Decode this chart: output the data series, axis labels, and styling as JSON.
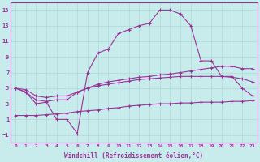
{
  "background_color": "#c8ecec",
  "grid_color": "#b0d8d8",
  "line_color": "#993399",
  "xlabel": "Windchill (Refroidissement éolien,°C)",
  "x_values": [
    0,
    1,
    2,
    3,
    4,
    5,
    6,
    7,
    8,
    9,
    10,
    11,
    12,
    13,
    14,
    15,
    16,
    17,
    18,
    19,
    20,
    21,
    22,
    23
  ],
  "line1": [
    5,
    4.5,
    3,
    3.2,
    1,
    1,
    -0.8,
    7,
    9.5,
    10,
    12,
    12.5,
    13,
    13.3,
    15,
    15,
    14.5,
    13,
    8.5,
    8.5,
    6.5,
    6.5,
    5,
    4
  ],
  "line2": [
    5,
    4.5,
    3.5,
    3.3,
    3.5,
    3.5,
    4.5,
    5.0,
    5.5,
    5.8,
    6.0,
    6.2,
    6.4,
    6.5,
    6.7,
    6.8,
    7.0,
    7.2,
    7.4,
    7.6,
    7.8,
    7.8,
    7.5,
    7.5
  ],
  "line3": [
    5,
    4.8,
    4.0,
    3.8,
    4.0,
    4.0,
    4.5,
    5.0,
    5.3,
    5.5,
    5.7,
    5.9,
    6.1,
    6.2,
    6.3,
    6.4,
    6.5,
    6.5,
    6.5,
    6.5,
    6.5,
    6.4,
    6.2,
    5.8
  ],
  "line4": [
    1.5,
    1.5,
    1.5,
    1.6,
    1.7,
    1.8,
    2.0,
    2.1,
    2.2,
    2.4,
    2.5,
    2.7,
    2.8,
    2.9,
    3.0,
    3.0,
    3.1,
    3.1,
    3.2,
    3.2,
    3.2,
    3.3,
    3.3,
    3.4
  ],
  "ylim": [
    -2,
    16
  ],
  "xlim": [
    -0.5,
    23.5
  ],
  "yticks": [
    -1,
    1,
    3,
    5,
    7,
    9,
    11,
    13,
    15
  ],
  "xticks": [
    0,
    1,
    2,
    3,
    4,
    5,
    6,
    7,
    8,
    9,
    10,
    11,
    12,
    13,
    14,
    15,
    16,
    17,
    18,
    19,
    20,
    21,
    22,
    23
  ]
}
